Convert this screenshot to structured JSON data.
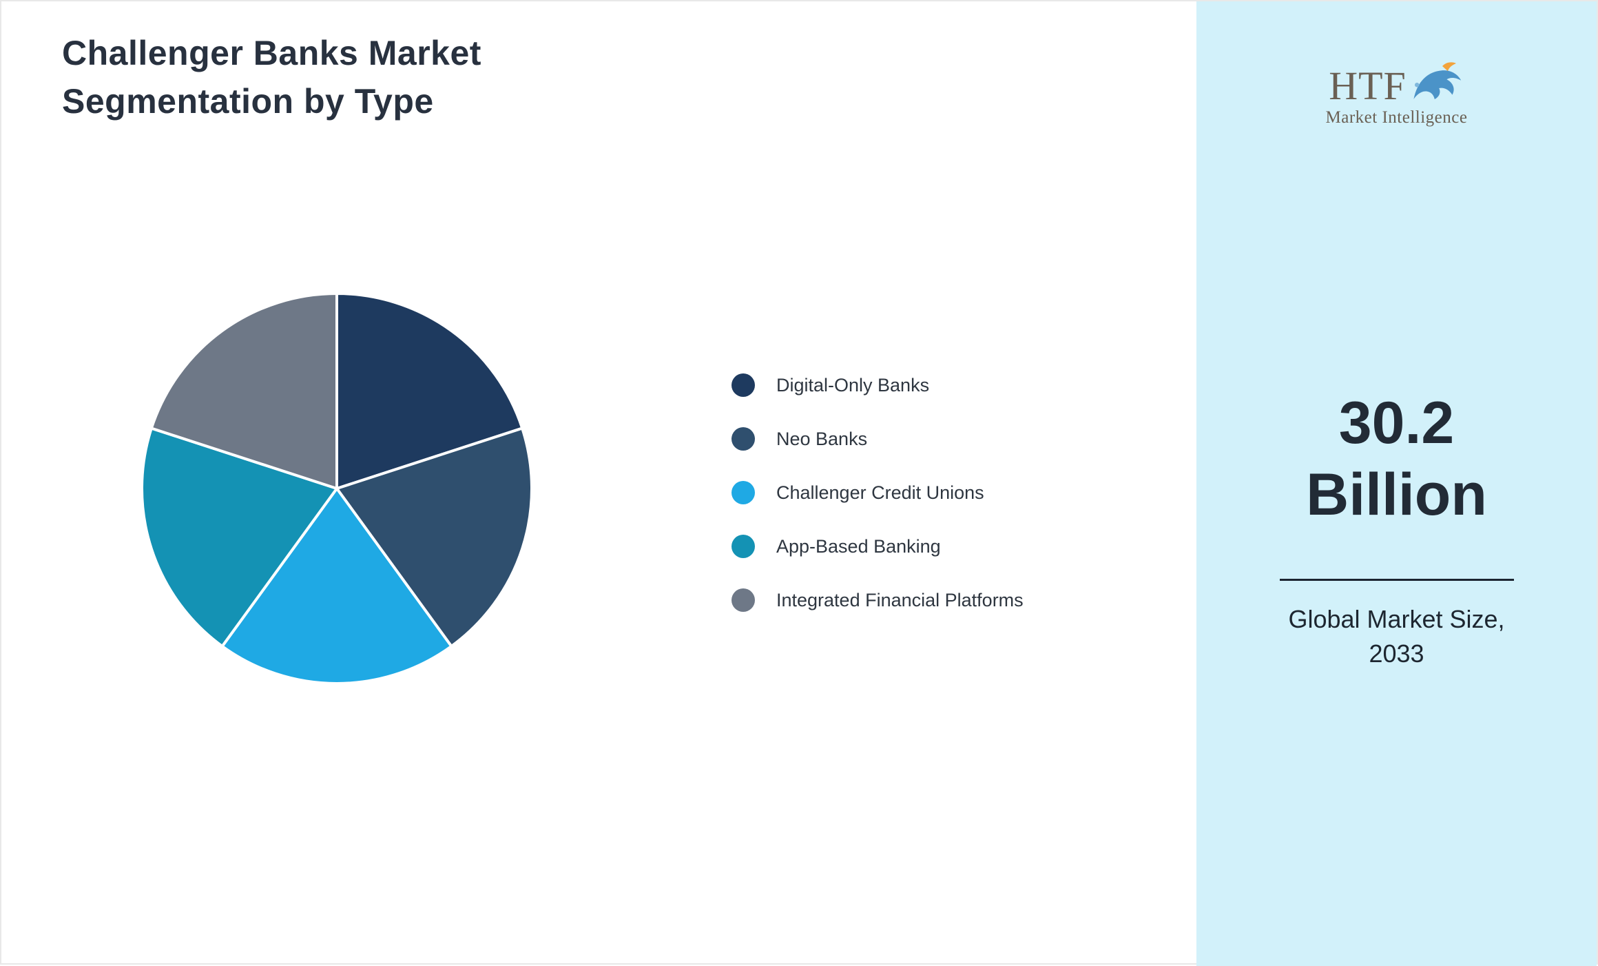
{
  "page": {
    "title_lines": [
      "Challenger Banks Market",
      "Segmentation by Type"
    ]
  },
  "chart_data": {
    "type": "pie",
    "title": "Challenger Banks Market Segmentation by Type",
    "categories": [
      "Digital-Only Banks",
      "Neo Banks",
      "Challenger Credit Unions",
      "App-Based Banking",
      "Integrated Financial Platforms"
    ],
    "values": [
      20,
      20,
      20,
      20,
      20
    ],
    "unit": "%",
    "colors": [
      "#1e3a5f",
      "#2f4f6e",
      "#1fa9e4",
      "#1492b4",
      "#6e7887"
    ],
    "start_angle_deg": 0,
    "direction": "clockwise",
    "legend_position": "right",
    "slice_border_color": "#ffffff"
  },
  "sidebar": {
    "background": "#d2f1fa",
    "logo": {
      "brand": "HTF",
      "tagline": "Market Intelligence"
    },
    "market_size_value": "30.2",
    "market_size_unit": "Billion",
    "caption_lines": [
      "Global Market Size,",
      "2033"
    ]
  }
}
